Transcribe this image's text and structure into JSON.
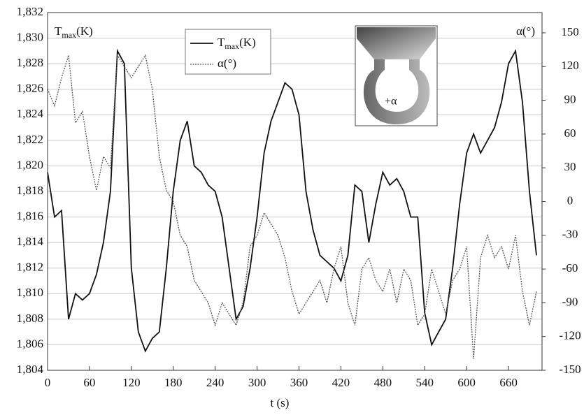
{
  "chart_data": {
    "type": "line",
    "y_label": [
      "T",
      "max",
      "(K)"
    ],
    "y2_label": "α(°)",
    "x_label": "t (s)",
    "inset_label": "+α",
    "x": [
      0,
      10,
      20,
      30,
      40,
      50,
      60,
      70,
      80,
      90,
      100,
      110,
      120,
      130,
      140,
      150,
      160,
      170,
      180,
      190,
      200,
      210,
      220,
      230,
      240,
      250,
      260,
      270,
      280,
      290,
      300,
      310,
      320,
      330,
      340,
      350,
      360,
      370,
      380,
      390,
      400,
      410,
      420,
      430,
      440,
      450,
      460,
      470,
      480,
      490,
      500,
      510,
      520,
      530,
      540,
      550,
      560,
      570,
      580,
      590,
      600,
      610,
      620,
      630,
      640,
      650,
      660,
      670,
      680,
      690,
      700
    ],
    "series": [
      {
        "name": [
          "T",
          "max",
          "(K)"
        ],
        "color": "#111111",
        "dashed": false,
        "values": [
          1819.5,
          1816,
          1816.5,
          1808,
          1810,
          1809.5,
          1810,
          1811.5,
          1814,
          1818,
          1829,
          1828,
          1812,
          1807,
          1805.5,
          1806.5,
          1807,
          1812,
          1818,
          1822,
          1823.5,
          1820,
          1819.5,
          1818.5,
          1818,
          1816,
          1812,
          1808,
          1809,
          1812,
          1816,
          1821,
          1823.5,
          1825,
          1826.5,
          1826,
          1824,
          1818,
          1815,
          1813,
          1812.5,
          1812,
          1811,
          1813,
          1818.5,
          1818,
          1814,
          1817,
          1819.5,
          1818.5,
          1819,
          1818,
          1816,
          1816,
          1808.5,
          1806,
          1807,
          1808,
          1812,
          1817,
          1821,
          1822.5,
          1821,
          1822,
          1823,
          1825,
          1828,
          1829,
          1825,
          1818,
          1813
        ]
      },
      {
        "name": [
          "α(°)"
        ],
        "color": "#555555",
        "dashed": true,
        "axis": "y2",
        "values": [
          100,
          85,
          110,
          130,
          70,
          80,
          40,
          10,
          40,
          30,
          130,
          120,
          110,
          120,
          130,
          100,
          40,
          10,
          0,
          -30,
          -40,
          -70,
          -80,
          -90,
          -110,
          -90,
          -100,
          -110,
          -90,
          -40,
          -30,
          -10,
          -20,
          -30,
          -50,
          -80,
          -100,
          -90,
          -80,
          -70,
          -90,
          -60,
          -40,
          -90,
          -110,
          -60,
          -50,
          -70,
          -80,
          -60,
          -90,
          -60,
          -70,
          -110,
          -100,
          -60,
          -80,
          -100,
          -70,
          -60,
          -40,
          -140,
          -50,
          -30,
          -50,
          -40,
          -60,
          -30,
          -80,
          -110,
          -80
        ]
      }
    ],
    "xlim": [
      0,
      708
    ],
    "xticks": [
      0,
      60,
      120,
      180,
      240,
      300,
      360,
      420,
      480,
      540,
      600,
      660
    ],
    "ylim": [
      1804,
      1832
    ],
    "yticks": [
      {
        "value": 1804,
        "label": "1,804"
      },
      {
        "value": 1806,
        "label": "1,806"
      },
      {
        "value": 1808,
        "label": "1,808"
      },
      {
        "value": 1810,
        "label": "1,810"
      },
      {
        "value": 1812,
        "label": "1,812"
      },
      {
        "value": 1814,
        "label": "1,814"
      },
      {
        "value": 1816,
        "label": "1,816"
      },
      {
        "value": 1818,
        "label": "1,818"
      },
      {
        "value": 1820,
        "label": "1,820"
      },
      {
        "value": 1822,
        "label": "1,822"
      },
      {
        "value": 1824,
        "label": "1,824"
      },
      {
        "value": 1826,
        "label": "1,826"
      },
      {
        "value": 1828,
        "label": "1,828"
      },
      {
        "value": 1830,
        "label": "1,830"
      },
      {
        "value": 1832,
        "label": "1,832"
      }
    ],
    "y2lim": [
      -150,
      168
    ],
    "y2ticks": [
      -150,
      -120,
      -90,
      -60,
      -30,
      0,
      30,
      60,
      90,
      120,
      150
    ],
    "grid": true
  }
}
